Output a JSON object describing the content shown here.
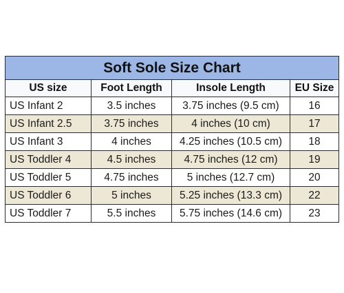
{
  "chart": {
    "title": "Soft Sole Size Chart",
    "headers": [
      "US size",
      "Foot Length",
      "Insole Length",
      "EU Size"
    ],
    "rows": [
      [
        "US Infant  2",
        "3.5 inches",
        "3.75 inches (9.5 cm)",
        "16"
      ],
      [
        "US Infant  2.5",
        "3.75 inches",
        "4 inches (10 cm)",
        "17"
      ],
      [
        "US Infant  3",
        "4 inches",
        "4.25 inches (10.5 cm)",
        "18"
      ],
      [
        "US Toddler  4",
        "4.5 inches",
        "4.75 inches (12 cm)",
        "19"
      ],
      [
        "US Toddler  5",
        "4.75 inches",
        "5 inches (12.7 cm)",
        "20"
      ],
      [
        "US Toddler  6",
        "5 inches",
        "5.25 inches (13.3 cm)",
        "22"
      ],
      [
        "US Toddler  7",
        "5.5 inches",
        "5.75 inches (14.6 cm)",
        "23"
      ]
    ]
  },
  "colors": {
    "title_background": "#9cb7e6",
    "shaded_row": "#ede8d6",
    "border": "#2b2b2b"
  }
}
